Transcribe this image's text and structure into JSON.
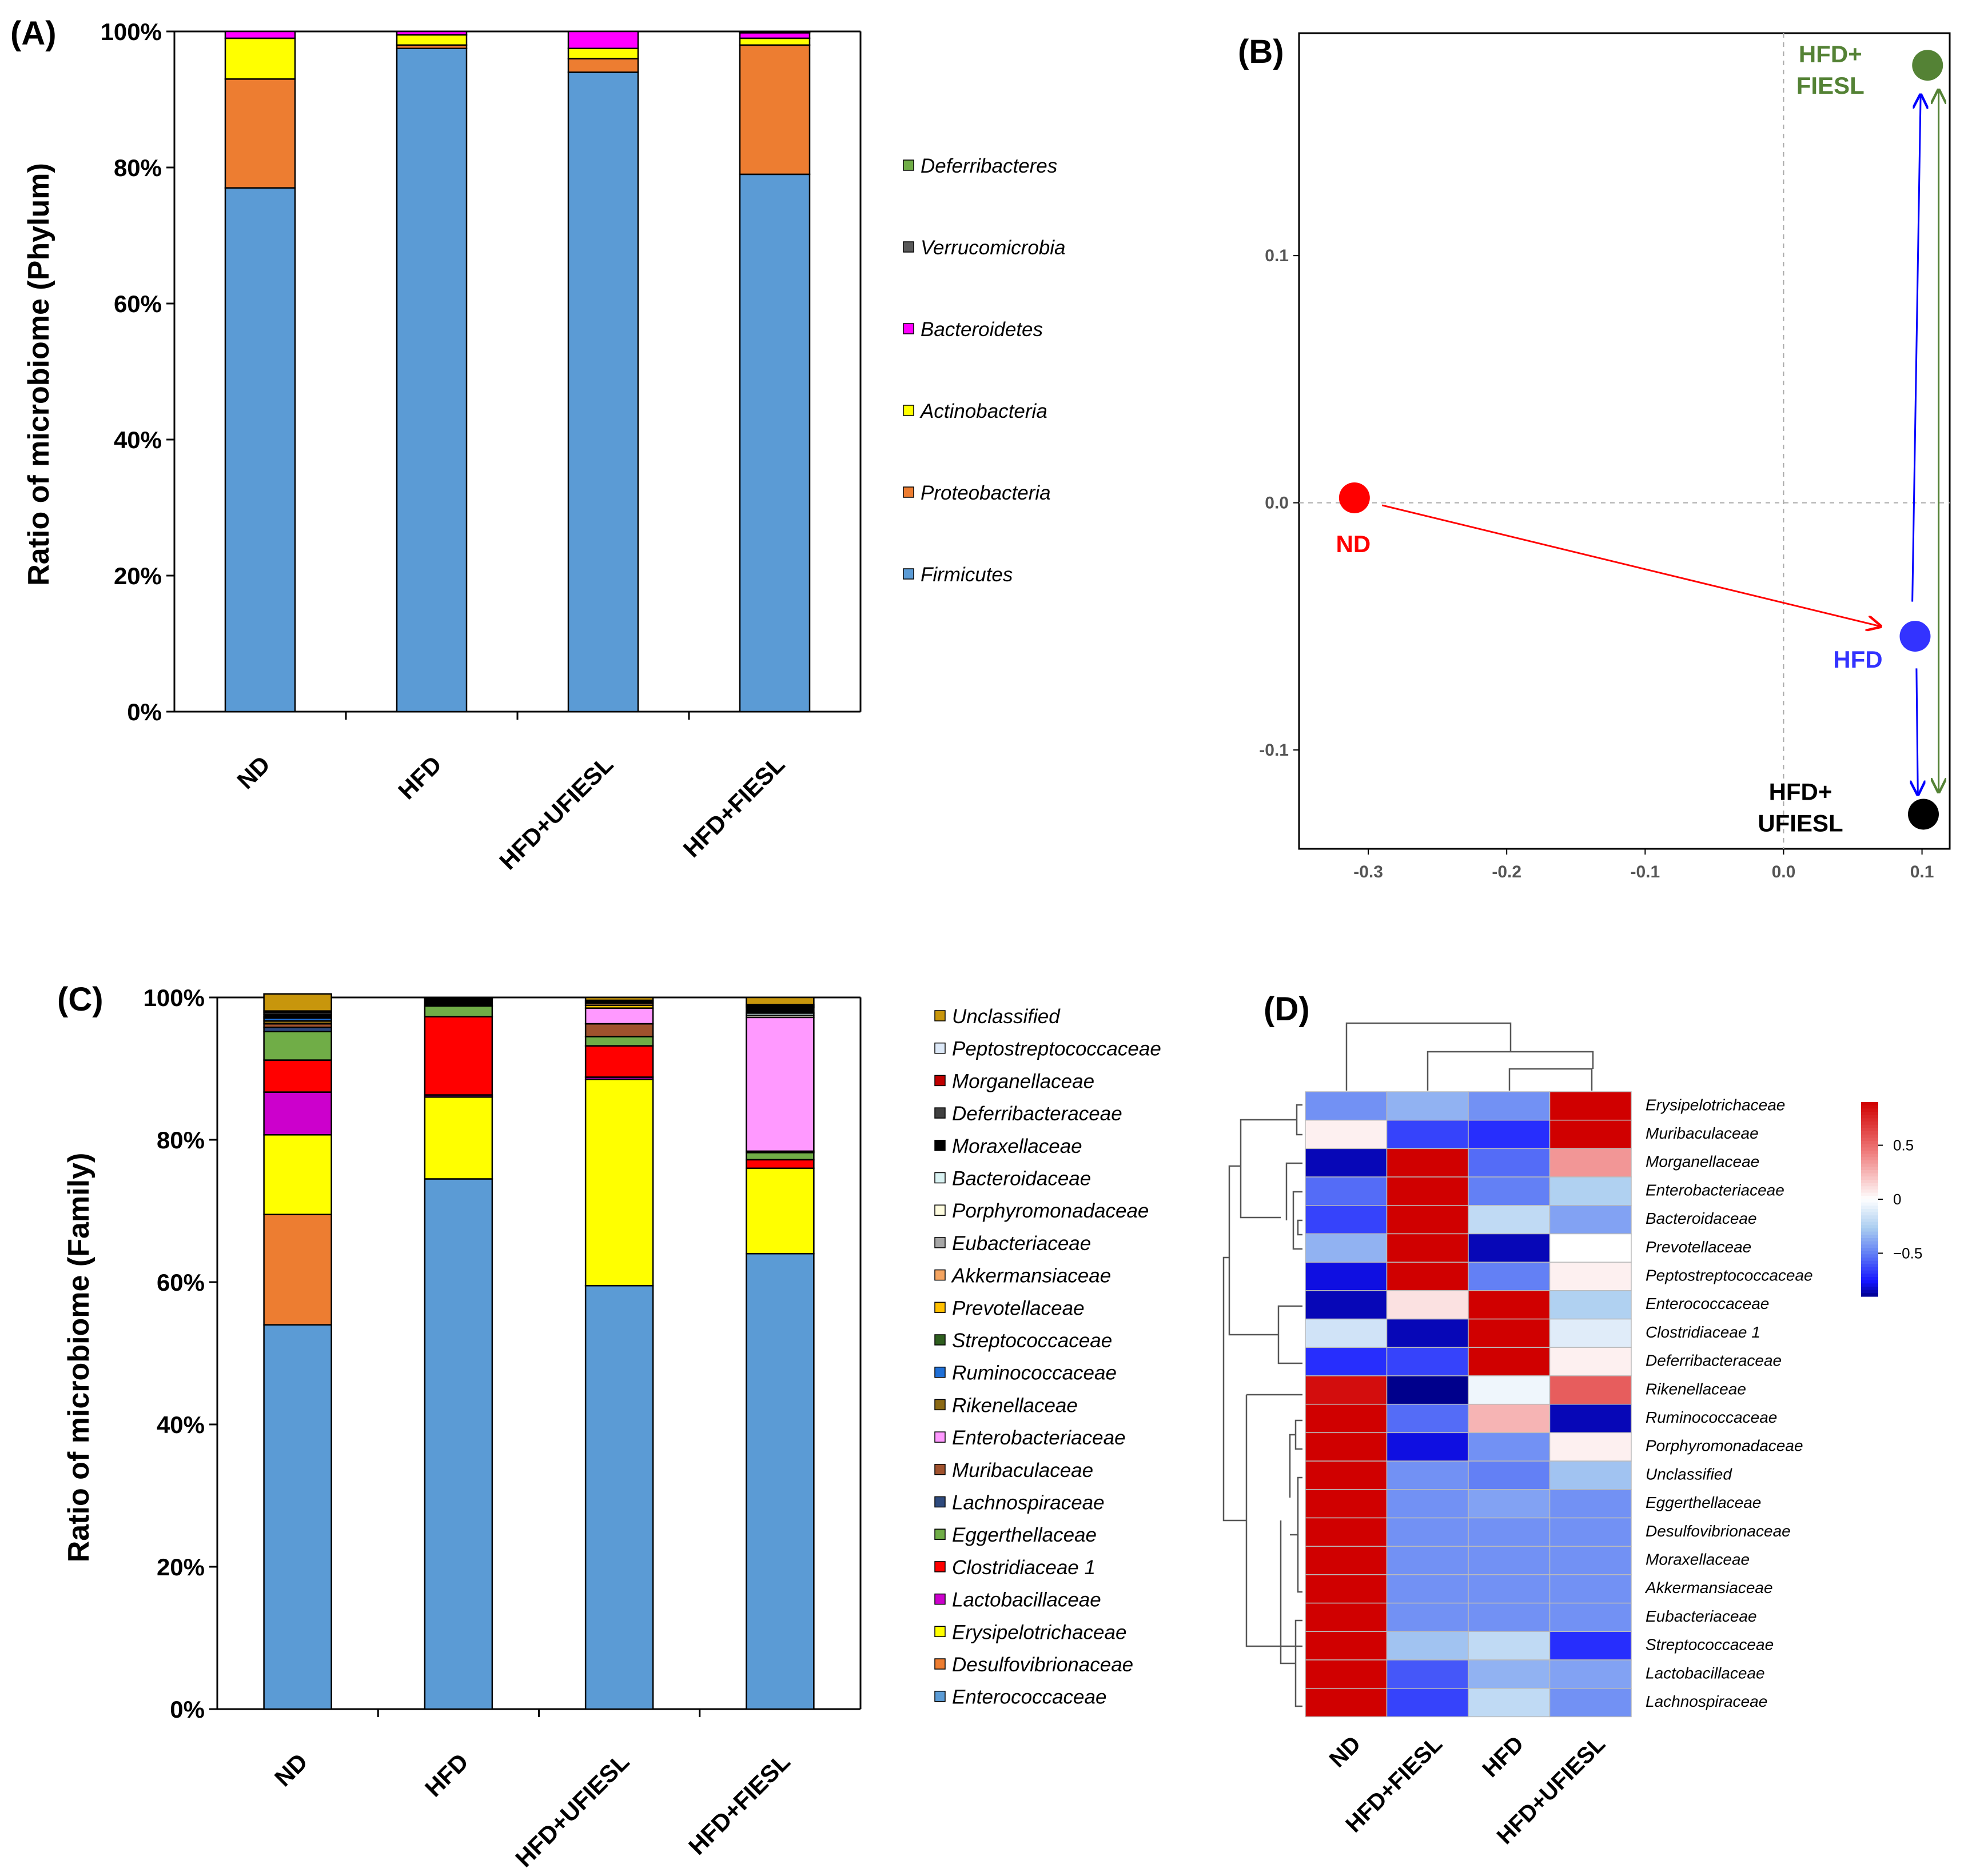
{
  "panels": {
    "a": "(A)",
    "b": "(B)",
    "c": "(C)",
    "d": "(D)"
  },
  "chart_data": [
    {
      "id": "A",
      "type": "bar",
      "stacked": true,
      "ylabel": "Ratio of microbiome (Phylum)",
      "ytick_labels": [
        "0%",
        "20%",
        "40%",
        "60%",
        "80%",
        "100%"
      ],
      "ylim": [
        0,
        100
      ],
      "categories": [
        "ND",
        "HFD",
        "HFD+UFIESL",
        "HFD+FIESL"
      ],
      "series": [
        {
          "name": "Firmicutes",
          "color": "#5b9bd5",
          "values": [
            77.0,
            97.5,
            94.0,
            79.0
          ]
        },
        {
          "name": "Proteobacteria",
          "color": "#ed7d31",
          "values": [
            16.0,
            0.5,
            2.0,
            19.0
          ]
        },
        {
          "name": "Actinobacteria",
          "color": "#ffff00",
          "values": [
            6.0,
            1.5,
            1.5,
            1.0
          ]
        },
        {
          "name": "Bacteroidetes",
          "color": "#ff00ff",
          "values": [
            1.0,
            0.5,
            2.5,
            0.8
          ]
        },
        {
          "name": "Verrucomicrobia",
          "color": "#595959",
          "values": [
            0.0,
            0.0,
            0.0,
            0.1
          ]
        },
        {
          "name": "Deferribacteres",
          "color": "#70ad47",
          "values": [
            0.0,
            0.0,
            0.0,
            0.1
          ]
        }
      ],
      "legend_order": [
        "Deferribacteres",
        "Verrucomicrobia",
        "Bacteroidetes",
        "Actinobacteria",
        "Proteobacteria",
        "Firmicutes"
      ]
    },
    {
      "id": "B",
      "type": "scatter",
      "xlim": [
        -0.35,
        0.12
      ],
      "ylim": [
        -0.14,
        0.19
      ],
      "xticks": [
        -0.3,
        -0.2,
        -0.1,
        0.0,
        0.1
      ],
      "xtick_labels": [
        "-0.3",
        "-0.2",
        "-0.1",
        "0.0",
        "0.1"
      ],
      "yticks": [
        -0.1,
        0.0,
        0.1
      ],
      "ytick_labels": [
        "-0.1",
        "0.0",
        "0.1"
      ],
      "points": [
        {
          "label": "ND",
          "x": -0.31,
          "y": 0.002,
          "color": "#ff0000",
          "label_lines": [
            "ND"
          ]
        },
        {
          "label": "HFD",
          "x": 0.095,
          "y": -0.054,
          "color": "#3333ff",
          "label_lines": [
            "HFD"
          ]
        },
        {
          "label": "HFD+ FIESL",
          "x": 0.104,
          "y": 0.177,
          "color": "#548235",
          "label_lines": [
            "HFD+",
            "FIESL"
          ]
        },
        {
          "label": "HFD+ UFIESL",
          "x": 0.101,
          "y": -0.126,
          "color": "#000000",
          "label_lines": [
            "HFD+",
            "UFIESL"
          ]
        }
      ],
      "arrows": [
        {
          "from": [
            -0.29,
            -0.001
          ],
          "to": [
            0.07,
            -0.05
          ],
          "color": "#ff0000"
        },
        {
          "from": [
            0.093,
            -0.04
          ],
          "to": [
            0.099,
            0.165
          ],
          "color": "#0000ff"
        },
        {
          "from": [
            0.096,
            -0.067
          ],
          "to": [
            0.097,
            -0.118
          ],
          "color": "#0000ff"
        },
        {
          "from": [
            0.112,
            -0.117
          ],
          "to": [
            0.112,
            0.167
          ],
          "color": "#548235",
          "double": true
        }
      ]
    },
    {
      "id": "C",
      "type": "bar",
      "stacked": true,
      "ylabel": "Ratio of microbiome (Family)",
      "ytick_labels": [
        "0%",
        "20%",
        "40%",
        "60%",
        "80%",
        "100%"
      ],
      "ylim": [
        0,
        100
      ],
      "categories": [
        "ND",
        "HFD",
        "HFD+UFIESL",
        "HFD+FIESL"
      ],
      "series": [
        {
          "name": "Enterococcaceae",
          "color": "#5b9bd5",
          "values": [
            54.0,
            74.5,
            59.5,
            64.0
          ]
        },
        {
          "name": "Desulfovibrionaceae",
          "color": "#ed7d31",
          "values": [
            15.5,
            0.0,
            0.0,
            0.0
          ]
        },
        {
          "name": "Erysipelotrichaceae",
          "color": "#ffff00",
          "values": [
            11.2,
            11.5,
            29.0,
            12.0
          ]
        },
        {
          "name": "Lactobacillaceae",
          "color": "#cc00cc",
          "values": [
            6.0,
            0.3,
            0.3,
            0.0
          ]
        },
        {
          "name": "Clostridiaceae  1",
          "color": "#ff0000",
          "values": [
            4.5,
            11.0,
            4.4,
            1.2
          ]
        },
        {
          "name": "Eggerthellaceae",
          "color": "#70ad47",
          "values": [
            4.0,
            1.5,
            1.3,
            1.0
          ]
        },
        {
          "name": "Lachnospiraceae",
          "color": "#2e4a7d",
          "values": [
            0.6,
            0.0,
            0.0,
            0.2
          ]
        },
        {
          "name": "Muribaculaceae",
          "color": "#a0522d",
          "values": [
            0.5,
            0.0,
            1.8,
            0.0
          ]
        },
        {
          "name": "Enterobacteriaceae",
          "color": "#ff99ff",
          "values": [
            0.0,
            0.0,
            2.2,
            18.8
          ]
        },
        {
          "name": "Rikenellaceae",
          "color": "#8b6914",
          "values": [
            0.4,
            0.0,
            0.0,
            0.0
          ]
        },
        {
          "name": "Ruminococcaceae",
          "color": "#1f6fd6",
          "values": [
            0.4,
            0.0,
            0.0,
            0.0
          ]
        },
        {
          "name": "Streptococcaceae",
          "color": "#2e5e1e",
          "values": [
            0.2,
            0.0,
            0.0,
            0.0
          ]
        },
        {
          "name": "Prevotellaceae",
          "color": "#ffc000",
          "values": [
            0.0,
            0.0,
            0.4,
            0.0
          ]
        },
        {
          "name": "Akkermansiaceae",
          "color": "#f4a460",
          "values": [
            0.0,
            0.0,
            0.3,
            0.0
          ]
        },
        {
          "name": "Eubacteriaceae",
          "color": "#a6a6a6",
          "values": [
            0.0,
            0.0,
            0.0,
            0.0
          ]
        },
        {
          "name": "Porphyromonadaceae",
          "color": "#fffde0",
          "values": [
            0.0,
            0.0,
            0.0,
            0.3
          ]
        },
        {
          "name": "Bacteroidaceae",
          "color": "#d9f2f2",
          "values": [
            0.0,
            0.0,
            0.0,
            0.3
          ]
        },
        {
          "name": "Moraxellaceae",
          "color": "#000000",
          "values": [
            0.3,
            1.0,
            0.2,
            0.8
          ]
        },
        {
          "name": "Deferribacteraceae",
          "color": "#404040",
          "values": [
            0.3,
            0.2,
            0.2,
            0.2
          ]
        },
        {
          "name": "Morganellaceae",
          "color": "#c00000",
          "values": [
            0.2,
            0.0,
            0.0,
            0.2
          ]
        },
        {
          "name": "Peptostreptococcaceae",
          "color": "#dde9f8",
          "values": [
            0.0,
            0.0,
            0.0,
            0.0
          ]
        },
        {
          "name": "Unclassified",
          "color": "#c8960c",
          "values": [
            2.4,
            0.0,
            0.4,
            1.0
          ]
        }
      ],
      "legend_order": [
        "Unclassified",
        "Peptostreptococcaceae",
        "Morganellaceae",
        "Deferribacteraceae",
        "Moraxellaceae",
        "Bacteroidaceae",
        "Porphyromonadaceae",
        "Eubacteriaceae",
        "Akkermansiaceae",
        "Prevotellaceae",
        "Streptococcaceae",
        "Ruminococcaceae",
        "Rikenellaceae",
        "Enterobacteriaceae",
        "Muribaculaceae",
        "Lachnospiraceae",
        "Eggerthellaceae",
        "Clostridiaceae  1",
        "Lactobacillaceae",
        "Erysipelotrichaceae",
        "Desulfovibrionaceae",
        "Enterococcaceae"
      ]
    },
    {
      "id": "D",
      "type": "heatmap",
      "columns": [
        "ND",
        "HFD+FIESL",
        "HFD",
        "HFD+UFIESL"
      ],
      "rows": [
        "Erysipelotrichaceae",
        "Muribaculaceae",
        "Morganellaceae",
        "Enterobacteriaceae",
        "Bacteroidaceae",
        "Prevotellaceae",
        "Peptostreptococcaceae",
        "Enterococcaceae",
        "Clostridiaceae  1",
        "Deferribacteraceae",
        "Rikenellaceae",
        "Ruminococcaceae",
        "Porphyromonadaceae",
        "Unclassified",
        "Eggerthellaceae",
        "Desulfovibrionaceae",
        "Moraxellaceae",
        "Akkermansiaceae",
        "Eubacteriaceae",
        "Streptococcaceae",
        "Lactobacillaceae",
        "Lachnospiraceae"
      ],
      "values": [
        [
          -0.45,
          -0.35,
          -0.45,
          0.9
        ],
        [
          0.05,
          -0.65,
          -0.7,
          0.9
        ],
        [
          -0.85,
          0.9,
          -0.55,
          0.35
        ],
        [
          -0.55,
          0.9,
          -0.5,
          -0.25
        ],
        [
          -0.65,
          0.9,
          -0.2,
          -0.4
        ],
        [
          -0.35,
          0.9,
          -0.85,
          0.0
        ],
        [
          -0.8,
          0.9,
          -0.5,
          0.05
        ],
        [
          -0.85,
          0.1,
          0.9,
          -0.25
        ],
        [
          -0.15,
          -0.85,
          0.9,
          -0.1
        ],
        [
          -0.7,
          -0.65,
          0.9,
          0.05
        ],
        [
          0.85,
          -0.95,
          -0.05,
          0.55
        ],
        [
          0.9,
          -0.55,
          0.25,
          -0.85
        ],
        [
          0.9,
          -0.8,
          -0.45,
          0.05
        ],
        [
          0.9,
          -0.45,
          -0.5,
          -0.3
        ],
        [
          0.9,
          -0.45,
          -0.4,
          -0.45
        ],
        [
          0.9,
          -0.45,
          -0.45,
          -0.45
        ],
        [
          0.9,
          -0.45,
          -0.45,
          -0.45
        ],
        [
          0.9,
          -0.45,
          -0.45,
          -0.45
        ],
        [
          0.9,
          -0.45,
          -0.45,
          -0.45
        ],
        [
          0.9,
          -0.3,
          -0.2,
          -0.7
        ],
        [
          0.9,
          -0.6,
          -0.35,
          -0.4
        ],
        [
          0.9,
          -0.65,
          -0.2,
          -0.45
        ]
      ],
      "colorbar_ticks": [
        0.5,
        0,
        -0.5
      ],
      "colorbar_labels": [
        "0.5",
        "0",
        "−0.5"
      ],
      "colorbar_range": [
        -0.9,
        0.9
      ]
    }
  ]
}
